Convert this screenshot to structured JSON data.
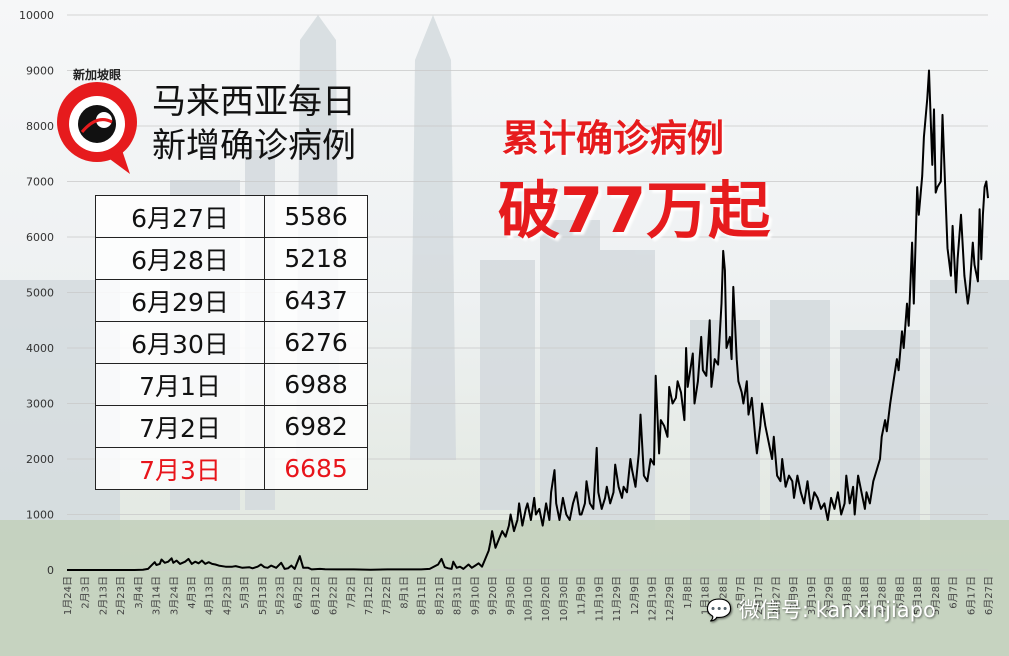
{
  "logo": {
    "text": "新加坡眼"
  },
  "headline": {
    "line1": "马来西亚每日",
    "line2": "新增确诊病例"
  },
  "daily_table": [
    {
      "date": "6月27日",
      "cases": "5586"
    },
    {
      "date": "6月28日",
      "cases": "5218"
    },
    {
      "date": "6月29日",
      "cases": "6437"
    },
    {
      "date": "6月30日",
      "cases": "6276"
    },
    {
      "date": "7月1日",
      "cases": "6988"
    },
    {
      "date": "7月2日",
      "cases": "6982"
    },
    {
      "date": "7月3日",
      "cases": "6685",
      "highlight": true
    }
  ],
  "callout": {
    "line1": "累计确诊病例",
    "line2": "破77万起"
  },
  "watermark": "微信号: kanxinjiapo",
  "colors": {
    "red": "#e61b1d",
    "line": "#000000"
  },
  "chart_data": {
    "type": "line",
    "ylim": [
      0,
      10000
    ],
    "yticks": [
      0,
      1000,
      2000,
      3000,
      4000,
      5000,
      6000,
      7000,
      8000,
      9000,
      10000
    ],
    "xtick_labels": [
      "1月24日",
      "2月3日",
      "2月13日",
      "2月23日",
      "3月4日",
      "3月14日",
      "3月24日",
      "4月3日",
      "4月13日",
      "4月23日",
      "5月3日",
      "5月13日",
      "5月23日",
      "6月2日",
      "6月12日",
      "6月22日",
      "7月2日",
      "7月12日",
      "7月22日",
      "8月1日",
      "8月11日",
      "8月21日",
      "8月31日",
      "9月10日",
      "9月20日",
      "9月30日",
      "10月10日",
      "10月20日",
      "10月30日",
      "11月9日",
      "11月19日",
      "11月29日",
      "12月9日",
      "12月19日",
      "12月29日",
      "1月8日",
      "1月18日",
      "1月28日",
      "2月7日",
      "2月17日",
      "2月27日",
      "3月9日",
      "3月19日",
      "3月29日",
      "4月8日",
      "4月18日",
      "4月28日",
      "5月8日",
      "5月18日",
      "5月28日",
      "6月7日",
      "6月17日",
      "6月27日"
    ],
    "series": [
      {
        "values": [
          [
            0,
            0
          ],
          [
            10,
            0
          ],
          [
            30,
            0
          ],
          [
            40,
            0
          ],
          [
            45,
            5
          ],
          [
            48,
            20
          ],
          [
            50,
            80
          ],
          [
            52,
            140
          ],
          [
            53,
            90
          ],
          [
            55,
            110
          ],
          [
            56,
            190
          ],
          [
            58,
            130
          ],
          [
            60,
            150
          ],
          [
            62,
            210
          ],
          [
            63,
            130
          ],
          [
            65,
            170
          ],
          [
            67,
            110
          ],
          [
            70,
            150
          ],
          [
            72,
            200
          ],
          [
            74,
            110
          ],
          [
            76,
            150
          ],
          [
            78,
            120
          ],
          [
            80,
            170
          ],
          [
            82,
            110
          ],
          [
            84,
            140
          ],
          [
            86,
            110
          ],
          [
            88,
            100
          ],
          [
            90,
            80
          ],
          [
            94,
            60
          ],
          [
            98,
            60
          ],
          [
            100,
            70
          ],
          [
            104,
            40
          ],
          [
            108,
            50
          ],
          [
            110,
            30
          ],
          [
            113,
            60
          ],
          [
            115,
            100
          ],
          [
            117,
            50
          ],
          [
            119,
            40
          ],
          [
            121,
            80
          ],
          [
            124,
            40
          ],
          [
            127,
            130
          ],
          [
            129,
            20
          ],
          [
            131,
            30
          ],
          [
            133,
            80
          ],
          [
            135,
            20
          ],
          [
            138,
            250
          ],
          [
            140,
            40
          ],
          [
            143,
            40
          ],
          [
            145,
            10
          ],
          [
            150,
            20
          ],
          [
            153,
            15
          ],
          [
            160,
            10
          ],
          [
            170,
            10
          ],
          [
            180,
            5
          ],
          [
            190,
            10
          ],
          [
            200,
            10
          ],
          [
            210,
            10
          ],
          [
            215,
            20
          ],
          [
            220,
            100
          ],
          [
            222,
            200
          ],
          [
            224,
            50
          ],
          [
            226,
            30
          ],
          [
            228,
            20
          ],
          [
            229,
            150
          ],
          [
            231,
            40
          ],
          [
            233,
            60
          ],
          [
            235,
            20
          ],
          [
            238,
            100
          ],
          [
            240,
            40
          ],
          [
            242,
            80
          ],
          [
            244,
            120
          ],
          [
            246,
            60
          ],
          [
            248,
            200
          ],
          [
            250,
            350
          ],
          [
            251,
            500
          ],
          [
            252,
            700
          ],
          [
            254,
            400
          ],
          [
            256,
            550
          ],
          [
            258,
            700
          ],
          [
            260,
            600
          ],
          [
            262,
            800
          ],
          [
            263,
            1000
          ],
          [
            265,
            700
          ],
          [
            267,
            900
          ],
          [
            268,
            1200
          ],
          [
            270,
            800
          ],
          [
            272,
            1100
          ],
          [
            273,
            1200
          ],
          [
            275,
            900
          ],
          [
            277,
            1300
          ],
          [
            278,
            1000
          ],
          [
            280,
            1100
          ],
          [
            282,
            800
          ],
          [
            284,
            1200
          ],
          [
            286,
            900
          ],
          [
            287,
            1400
          ],
          [
            289,
            1800
          ],
          [
            290,
            1200
          ],
          [
            292,
            900
          ],
          [
            294,
            1300
          ],
          [
            296,
            1000
          ],
          [
            298,
            900
          ],
          [
            300,
            1200
          ],
          [
            302,
            1400
          ],
          [
            304,
            1000
          ],
          [
            305,
            1000
          ],
          [
            307,
            1200
          ],
          [
            308,
            1600
          ],
          [
            310,
            1200
          ],
          [
            312,
            1100
          ],
          [
            314,
            2200
          ],
          [
            315,
            1400
          ],
          [
            317,
            1100
          ],
          [
            319,
            1300
          ],
          [
            320,
            1500
          ],
          [
            322,
            1200
          ],
          [
            324,
            1400
          ],
          [
            325,
            1900
          ],
          [
            327,
            1500
          ],
          [
            329,
            1300
          ],
          [
            330,
            1500
          ],
          [
            332,
            1400
          ],
          [
            334,
            2000
          ],
          [
            335,
            1800
          ],
          [
            337,
            1500
          ],
          [
            339,
            2100
          ],
          [
            340,
            2800
          ],
          [
            342,
            1700
          ],
          [
            344,
            1600
          ],
          [
            346,
            2000
          ],
          [
            348,
            1900
          ],
          [
            349,
            3500
          ],
          [
            351,
            2100
          ],
          [
            352,
            2700
          ],
          [
            354,
            2600
          ],
          [
            356,
            2400
          ],
          [
            357,
            3300
          ],
          [
            359,
            3000
          ],
          [
            361,
            3100
          ],
          [
            362,
            3400
          ],
          [
            364,
            3200
          ],
          [
            366,
            2700
          ],
          [
            367,
            4000
          ],
          [
            368,
            3300
          ],
          [
            369,
            3500
          ],
          [
            371,
            3900
          ],
          [
            372,
            3000
          ],
          [
            374,
            3400
          ],
          [
            376,
            4200
          ],
          [
            377,
            3600
          ],
          [
            379,
            3500
          ],
          [
            381,
            4500
          ],
          [
            382,
            3300
          ],
          [
            384,
            3800
          ],
          [
            386,
            3700
          ],
          [
            388,
            4800
          ],
          [
            389,
            5750
          ],
          [
            390,
            5400
          ],
          [
            391,
            4000
          ],
          [
            393,
            4200
          ],
          [
            394,
            3800
          ],
          [
            395,
            5100
          ],
          [
            397,
            3800
          ],
          [
            398,
            3400
          ],
          [
            400,
            3200
          ],
          [
            401,
            3000
          ],
          [
            403,
            3400
          ],
          [
            404,
            2800
          ],
          [
            406,
            3100
          ],
          [
            408,
            2400
          ],
          [
            409,
            2100
          ],
          [
            411,
            2600
          ],
          [
            412,
            3000
          ],
          [
            414,
            2600
          ],
          [
            416,
            2300
          ],
          [
            418,
            2000
          ],
          [
            419,
            2400
          ],
          [
            421,
            1700
          ],
          [
            423,
            1600
          ],
          [
            424,
            2000
          ],
          [
            426,
            1500
          ],
          [
            428,
            1700
          ],
          [
            430,
            1600
          ],
          [
            431,
            1300
          ],
          [
            433,
            1700
          ],
          [
            435,
            1400
          ],
          [
            437,
            1200
          ],
          [
            439,
            1600
          ],
          [
            441,
            1100
          ],
          [
            443,
            1400
          ],
          [
            445,
            1300
          ],
          [
            447,
            1100
          ],
          [
            449,
            1200
          ],
          [
            451,
            900
          ],
          [
            453,
            1300
          ],
          [
            455,
            1100
          ],
          [
            457,
            1400
          ],
          [
            459,
            1000
          ],
          [
            461,
            1200
          ],
          [
            462,
            1700
          ],
          [
            464,
            1200
          ],
          [
            466,
            1500
          ],
          [
            467,
            1000
          ],
          [
            469,
            1700
          ],
          [
            471,
            1400
          ],
          [
            473,
            1100
          ],
          [
            474,
            1400
          ],
          [
            476,
            1200
          ],
          [
            478,
            1600
          ],
          [
            480,
            1800
          ],
          [
            482,
            2000
          ],
          [
            483,
            2400
          ],
          [
            485,
            2700
          ],
          [
            486,
            2500
          ],
          [
            488,
            3000
          ],
          [
            490,
            3400
          ],
          [
            492,
            3800
          ],
          [
            493,
            3600
          ],
          [
            495,
            4300
          ],
          [
            496,
            4000
          ],
          [
            498,
            4800
          ],
          [
            499,
            4400
          ],
          [
            501,
            5900
          ],
          [
            502,
            4800
          ],
          [
            504,
            6900
          ],
          [
            505,
            6400
          ],
          [
            507,
            7100
          ],
          [
            508,
            7800
          ],
          [
            510,
            8500
          ],
          [
            511,
            9000
          ],
          [
            513,
            7300
          ],
          [
            514,
            8300
          ],
          [
            515,
            6800
          ],
          [
            516,
            6900
          ],
          [
            518,
            7000
          ],
          [
            519,
            8200
          ],
          [
            521,
            6600
          ],
          [
            522,
            5800
          ],
          [
            524,
            5300
          ],
          [
            525,
            6200
          ],
          [
            527,
            5000
          ],
          [
            528,
            5600
          ],
          [
            530,
            6400
          ],
          [
            532,
            5300
          ],
          [
            534,
            4800
          ],
          [
            535,
            5000
          ],
          [
            537,
            5900
          ],
          [
            538,
            5500
          ],
          [
            540,
            5200
          ],
          [
            541,
            6500
          ],
          [
            542,
            5600
          ],
          [
            543,
            6400
          ],
          [
            544,
            6900
          ],
          [
            545,
            7000
          ],
          [
            546,
            6700
          ]
        ]
      }
    ]
  }
}
